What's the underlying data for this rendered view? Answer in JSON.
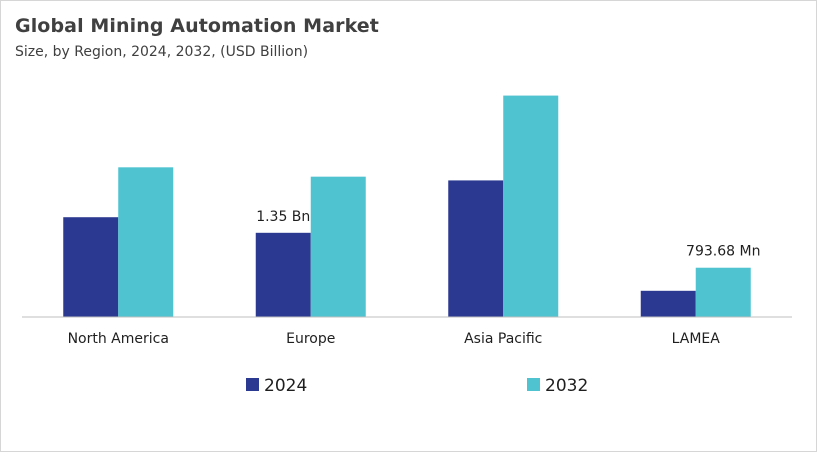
{
  "chart_data": {
    "type": "bar",
    "title": "Global Mining Automation Market",
    "subtitle": "Size, by Region, 2024, 2032, (USD Billion)",
    "xlabel": "",
    "ylabel": "",
    "categories": [
      "North America",
      "Europe",
      "Asia Pacific",
      "LAMEA"
    ],
    "series": [
      {
        "name": "2024",
        "color": "#2b3990",
        "values": [
          1.6,
          1.35,
          2.19,
          0.42
        ]
      },
      {
        "name": "2032",
        "color": "#4fc3d0",
        "values": [
          2.4,
          2.25,
          3.55,
          0.79
        ]
      }
    ],
    "data_labels": [
      {
        "series": 0,
        "index": 1,
        "text": "1.35 Bn"
      },
      {
        "series": 1,
        "index": 3,
        "text": "793.68 Mn"
      }
    ],
    "ylim": [
      0,
      3.8
    ],
    "grid": false,
    "legend": "bottom"
  }
}
